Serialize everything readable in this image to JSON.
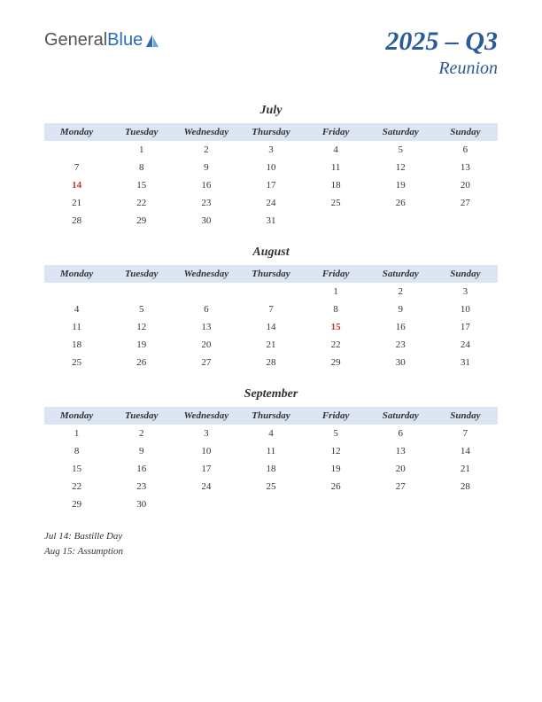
{
  "logo": {
    "part1": "General",
    "part2": "Blue"
  },
  "title": {
    "main": "2025 – Q3",
    "sub": "Reunion"
  },
  "colors": {
    "header_bg": "#dbe5f3",
    "title_color": "#2a5a9a",
    "holiday_color": "#c0392b",
    "text_color": "#333333",
    "background": "#ffffff"
  },
  "day_headers": [
    "Monday",
    "Tuesday",
    "Wednesday",
    "Thursday",
    "Friday",
    "Saturday",
    "Sunday"
  ],
  "months": [
    {
      "name": "July",
      "weeks": [
        [
          "",
          "1",
          "2",
          "3",
          "4",
          "5",
          "6"
        ],
        [
          "7",
          "8",
          "9",
          "10",
          "11",
          "12",
          "13"
        ],
        [
          "14",
          "15",
          "16",
          "17",
          "18",
          "19",
          "20"
        ],
        [
          "21",
          "22",
          "23",
          "24",
          "25",
          "26",
          "27"
        ],
        [
          "28",
          "29",
          "30",
          "31",
          "",
          "",
          ""
        ]
      ],
      "holidays": [
        [
          2,
          0
        ]
      ]
    },
    {
      "name": "August",
      "weeks": [
        [
          "",
          "",
          "",
          "",
          "1",
          "2",
          "3"
        ],
        [
          "4",
          "5",
          "6",
          "7",
          "8",
          "9",
          "10"
        ],
        [
          "11",
          "12",
          "13",
          "14",
          "15",
          "16",
          "17"
        ],
        [
          "18",
          "19",
          "20",
          "21",
          "22",
          "23",
          "24"
        ],
        [
          "25",
          "26",
          "27",
          "28",
          "29",
          "30",
          "31"
        ]
      ],
      "holidays": [
        [
          2,
          4
        ]
      ]
    },
    {
      "name": "September",
      "weeks": [
        [
          "1",
          "2",
          "3",
          "4",
          "5",
          "6",
          "7"
        ],
        [
          "8",
          "9",
          "10",
          "11",
          "12",
          "13",
          "14"
        ],
        [
          "15",
          "16",
          "17",
          "18",
          "19",
          "20",
          "21"
        ],
        [
          "22",
          "23",
          "24",
          "25",
          "26",
          "27",
          "28"
        ],
        [
          "29",
          "30",
          "",
          "",
          "",
          "",
          ""
        ]
      ],
      "holidays": []
    }
  ],
  "holiday_list": [
    "Jul 14: Bastille Day",
    "Aug 15: Assumption"
  ]
}
